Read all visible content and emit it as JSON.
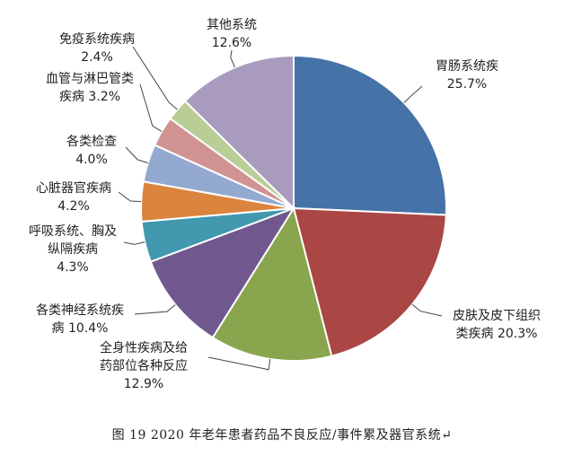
{
  "caption": "图 19   2020 年老年患者药品不良反应/事件累及器官系统↵",
  "chart_data": {
    "type": "pie",
    "title": "",
    "slices": [
      {
        "label": "胃肠系统疾",
        "label2": "",
        "pct_text": "25.7%",
        "value": 25.7,
        "color": "#4572a7"
      },
      {
        "label": "皮肤及皮下组织",
        "label2": "类疾病 20.3%",
        "pct_text": "",
        "value": 20.3,
        "color": "#aa4643"
      },
      {
        "label": "全身性疾病及给",
        "label2": "药部位各种反应",
        "pct_text": "12.9%",
        "value": 12.9,
        "color": "#89a54e"
      },
      {
        "label": "各类神经系统疾",
        "label2": "病 10.4%",
        "pct_text": "",
        "value": 10.4,
        "color": "#71588f"
      },
      {
        "label": "呼吸系统、胸及",
        "label2": "纵隔疾病",
        "pct_text": "4.3%",
        "value": 4.3,
        "color": "#4198af"
      },
      {
        "label": "心脏器官疾病",
        "label2": "",
        "pct_text": "4.2%",
        "value": 4.2,
        "color": "#db843d"
      },
      {
        "label": "各类检查",
        "label2": "",
        "pct_text": "4.0%",
        "value": 4.0,
        "color": "#93a9cf"
      },
      {
        "label": "血管与淋巴管类",
        "label2": "疾病 3.2%",
        "pct_text": "",
        "value": 3.2,
        "color": "#d19392"
      },
      {
        "label": "免疫系统疾病",
        "label2": "",
        "pct_text": "2.4%",
        "value": 2.4,
        "color": "#b9cd96"
      },
      {
        "label": "其他系统",
        "label2": "",
        "pct_text": "12.6%",
        "value": 12.6,
        "color": "#a99bbd"
      }
    ]
  }
}
